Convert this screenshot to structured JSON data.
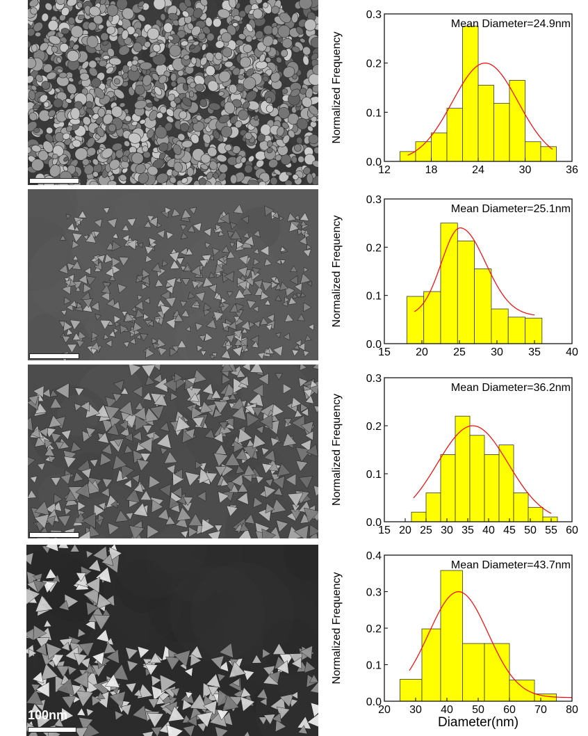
{
  "figure": {
    "scale_label": "100nm"
  },
  "colors": {
    "bar_fill": "#ffff00",
    "bar_stroke": "#333333",
    "fit_curve": "#ff0000"
  },
  "chart_data": [
    {
      "type": "bar",
      "ylabel": "Normalized Frequency",
      "xlabel": "",
      "annotation": "Mean Diameter=24.9nm",
      "xlim": [
        12,
        36
      ],
      "ylim": [
        0,
        0.3
      ],
      "xticks": [
        12,
        18,
        24,
        30,
        36
      ],
      "yticks": [
        0.0,
        0.1,
        0.2,
        0.3
      ],
      "bin_edges": [
        14,
        16,
        18,
        20,
        22,
        24,
        26,
        28,
        30,
        32,
        34
      ],
      "values": [
        0.02,
        0.04,
        0.058,
        0.108,
        0.275,
        0.155,
        0.118,
        0.165,
        0.04,
        0.03
      ],
      "bin_width": 2,
      "fit_curve": {
        "type": "gaussian",
        "mean": 24.9,
        "sigma": 4.2,
        "peak": 0.2,
        "x_range": [
          15,
          33.5
        ]
      }
    },
    {
      "type": "bar",
      "ylabel": "Normalized Frequency",
      "xlabel": "",
      "annotation": "Mean Diameter=25.1nm",
      "xlim": [
        15,
        40
      ],
      "ylim": [
        0,
        0.3
      ],
      "xticks": [
        15,
        20,
        25,
        30,
        35,
        40
      ],
      "yticks": [
        0.0,
        0.1,
        0.2,
        0.3
      ],
      "bin_edges": [
        18,
        20.25,
        22.5,
        24.75,
        27,
        29.25,
        31.5,
        33.75
      ],
      "values": [
        0.098,
        0.108,
        0.25,
        0.213,
        0.155,
        0.072,
        0.055,
        0.053
      ],
      "bin_width": 2.25,
      "fit_curve": {
        "type": "lognormal",
        "mean": 25.1,
        "sigma": 2.5,
        "peak": 0.24,
        "baseline": 0.057,
        "x_range": [
          19,
          35
        ]
      }
    },
    {
      "type": "bar",
      "ylabel": "Normalized Frequency",
      "xlabel": "",
      "annotation": "Mean Diameter=36.2nm",
      "xlim": [
        15,
        60
      ],
      "ylim": [
        0,
        0.3
      ],
      "xticks": [
        15,
        20,
        25,
        30,
        35,
        40,
        45,
        50,
        55,
        60
      ],
      "yticks": [
        0.0,
        0.1,
        0.2,
        0.3
      ],
      "bin_edges": [
        21.5,
        25,
        28.5,
        32,
        35.5,
        39,
        42.5,
        46,
        49.5,
        53
      ],
      "values": [
        0.02,
        0.06,
        0.14,
        0.22,
        0.18,
        0.14,
        0.16,
        0.06,
        0.03,
        0.01
      ],
      "bin_width": 3.5,
      "fit_curve": {
        "type": "gaussian",
        "mean": 36.2,
        "sigma": 8.5,
        "peak": 0.2,
        "x_range": [
          22,
          55
        ]
      }
    },
    {
      "type": "bar",
      "ylabel": "Normalized Frequency",
      "xlabel": "Diameter(nm)",
      "annotation": "Mean Diameter=43.7nm",
      "xlim": [
        20,
        80
      ],
      "ylim": [
        0,
        0.4
      ],
      "xticks": [
        20,
        30,
        40,
        50,
        60,
        70,
        80
      ],
      "yticks": [
        0.0,
        0.1,
        0.2,
        0.3,
        0.4
      ],
      "bin_edges": [
        25,
        32,
        38,
        45,
        52,
        60,
        68
      ],
      "values": [
        0.06,
        0.198,
        0.358,
        0.158,
        0.158,
        0.058,
        0.02
      ],
      "bin_widths": [
        7,
        6,
        7,
        7,
        8,
        8,
        7
      ],
      "fit_curve": {
        "type": "gaussian",
        "mean": 43.7,
        "sigma": 9.5,
        "peak": 0.3,
        "baseline": 0.01,
        "x_range": [
          28,
          80
        ]
      }
    }
  ]
}
